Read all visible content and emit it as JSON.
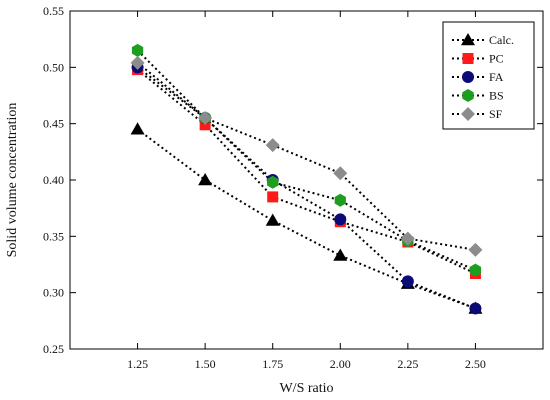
{
  "chart_data": {
    "type": "line",
    "xlabel": "W/S ratio",
    "ylabel": "Solid volume concentration",
    "xlim": [
      1.0,
      2.75
    ],
    "ylim": [
      0.25,
      0.55
    ],
    "xticks": [
      1.25,
      1.5,
      1.75,
      2.0,
      2.25,
      2.5
    ],
    "xtick_labels": [
      "1.25",
      "1.50",
      "1.75",
      "2.00",
      "2.25",
      "2.50"
    ],
    "yticks": [
      0.25,
      0.3,
      0.35,
      0.4,
      0.45,
      0.5,
      0.55
    ],
    "ytick_labels": [
      "0.25",
      "0.30",
      "0.35",
      "0.40",
      "0.45",
      "0.50",
      "0.55"
    ],
    "grid": false,
    "legend_position": "top-right",
    "x": [
      1.25,
      1.5,
      1.75,
      2.0,
      2.25,
      2.5
    ],
    "series": [
      {
        "name": "Calc.",
        "color": "#000000",
        "marker": "triangle",
        "values": [
          0.445,
          0.4,
          0.364,
          0.333,
          0.308,
          0.286
        ]
      },
      {
        "name": "PC",
        "color": "#ff1a1a",
        "marker": "square",
        "values": [
          0.498,
          0.449,
          0.385,
          0.363,
          0.345,
          0.317
        ]
      },
      {
        "name": "FA",
        "color": "#0b0b78",
        "marker": "circle",
        "values": [
          0.5,
          0.455,
          0.4,
          0.365,
          0.31,
          0.286
        ]
      },
      {
        "name": "BS",
        "color": "#1e9e1e",
        "marker": "hexagon",
        "values": [
          0.515,
          0.455,
          0.398,
          0.382,
          0.346,
          0.32
        ]
      },
      {
        "name": "SF",
        "color": "#8c8c8c",
        "marker": "diamond",
        "values": [
          0.504,
          0.455,
          0.431,
          0.406,
          0.348,
          0.338
        ]
      }
    ]
  }
}
